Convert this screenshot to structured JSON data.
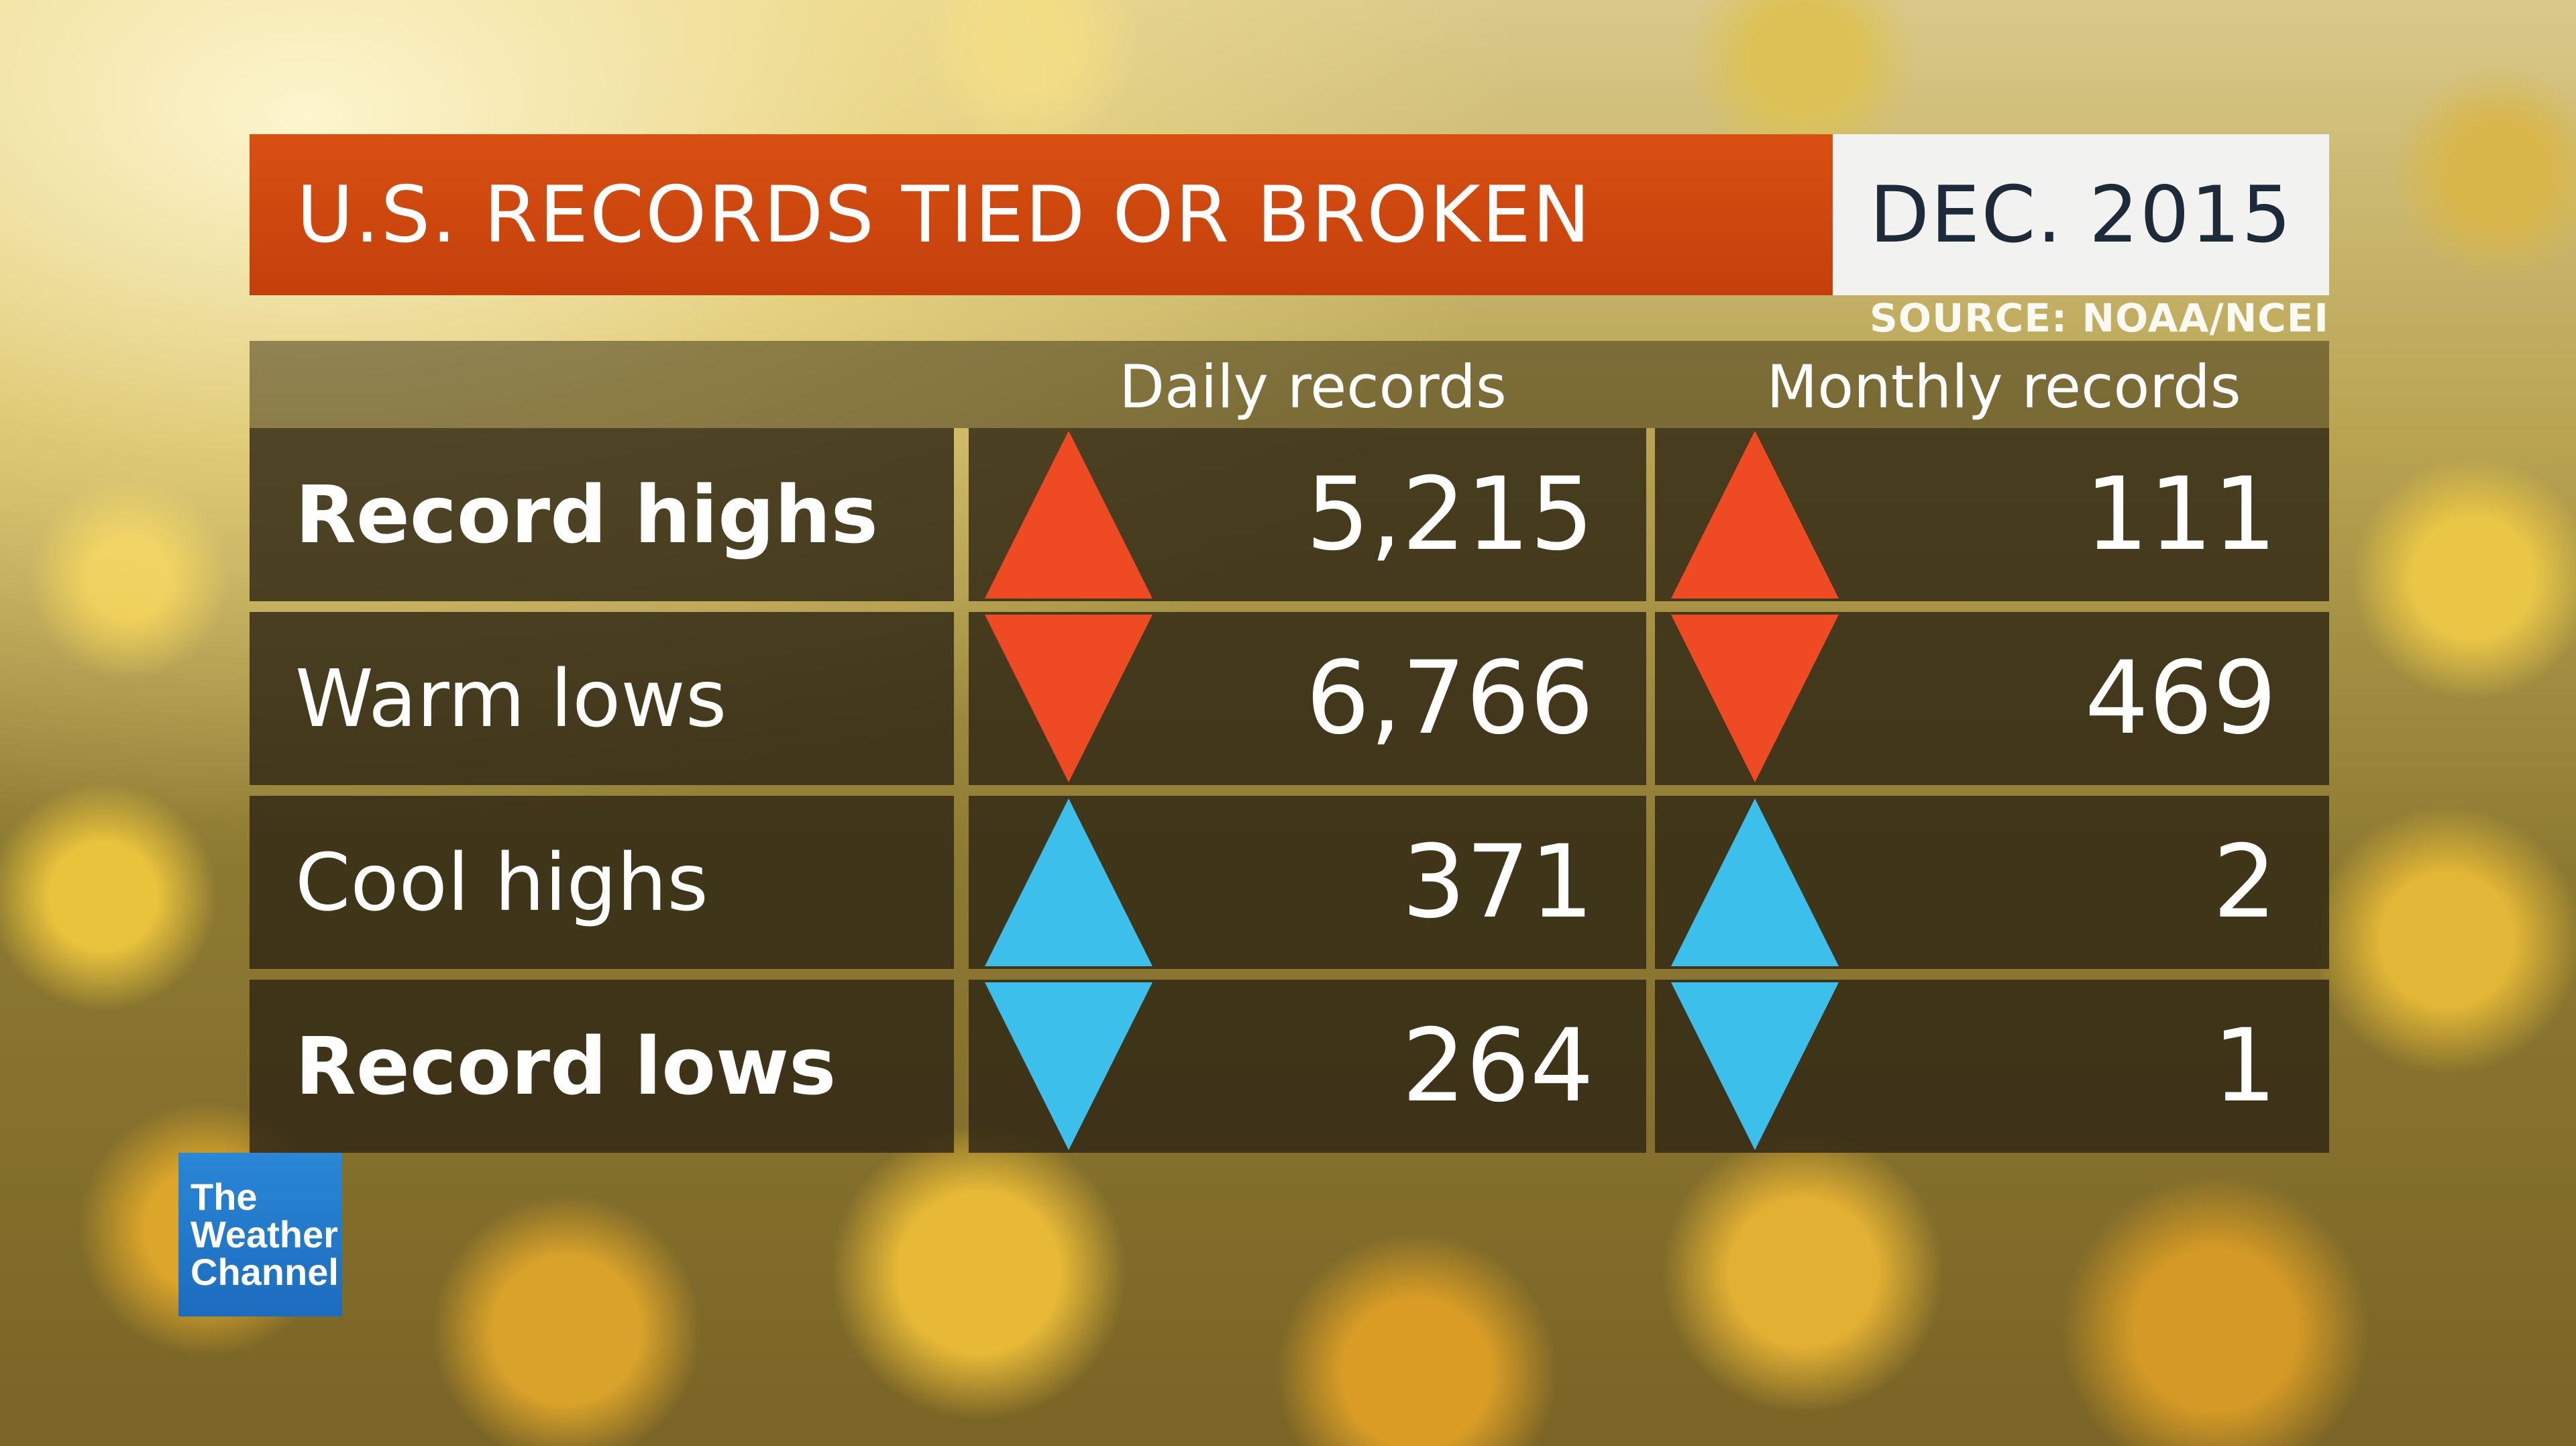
{
  "title": "U.S. RECORDS TIED OR BROKEN",
  "date": "DEC. 2015",
  "source": "SOURCE: NOAA/NCEI",
  "columns": {
    "daily": "Daily records",
    "monthly": "Monthly records"
  },
  "rows": [
    {
      "label": "Record highs",
      "daily": "5,215",
      "monthly": "111",
      "direction": "up",
      "color": "#ee4b25",
      "bold": true
    },
    {
      "label": "Warm lows",
      "daily": "6,766",
      "monthly": "469",
      "direction": "down",
      "color": "#ee4b25",
      "bold": false
    },
    {
      "label": "Cool highs",
      "daily": "371",
      "monthly": "2",
      "direction": "up",
      "color": "#3dbfec",
      "bold": false
    },
    {
      "label": "Record lows",
      "daily": "264",
      "monthly": "1",
      "direction": "down",
      "color": "#3dbfec",
      "bold": true
    }
  ],
  "logo": {
    "line1": "The",
    "line2": "Weather",
    "line3": "Channel"
  },
  "colors": {
    "title_bar": "#c94410",
    "warm": "#ee4b25",
    "cool": "#3dbfec"
  }
}
